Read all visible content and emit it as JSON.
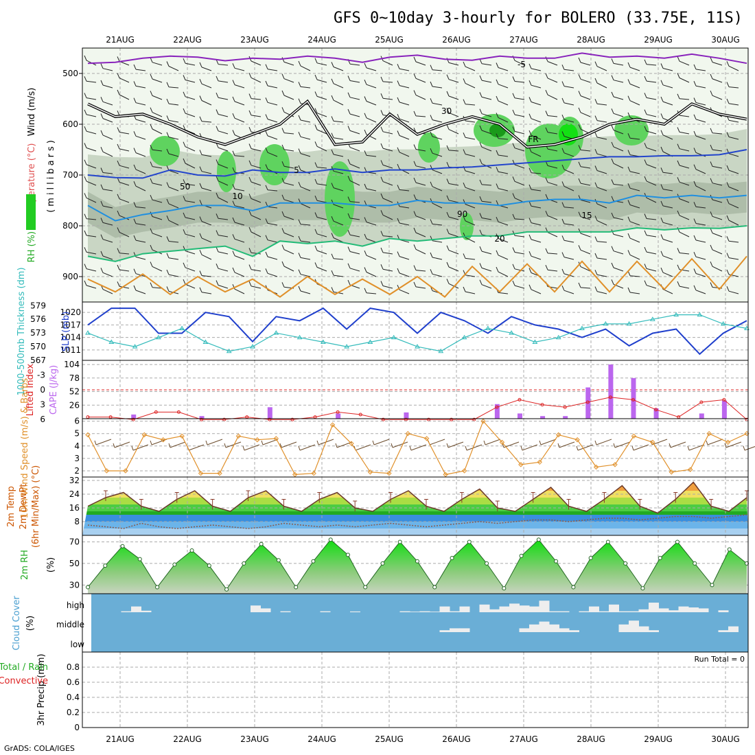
{
  "title": "GFS 0~10day 3-hourly for BOLERO (33.75E, 11S)",
  "credit": "GrADS: COLA/IGES",
  "colors": {
    "wind_label": "#000000",
    "temp_label": "#e05050",
    "rh_label": "#22aa22",
    "slp": "#1f3fcc",
    "thickness": "#33bbbb",
    "lifted": "#dd2222",
    "cape": "#bb66ee",
    "wind10": "#e0902a",
    "rh2m": "#22aa22",
    "cloud_label": "#4a9fd0",
    "cloud_bg": "#6aaed6",
    "precip_total": "#22aa22",
    "precip_conv": "#dd2222",
    "grid": "#aaaaaa"
  },
  "chart_data": [
    {
      "id": "cross_section",
      "type": "heatmap",
      "xlabels": [
        "21AUG",
        "22AUG",
        "23AUG",
        "24AUG",
        "25AUG",
        "26AUG",
        "27AUG",
        "28AUG",
        "29AUG",
        "30AUG"
      ],
      "ylabel_parts": [
        "Wind (m/s)",
        "Temperature (°C)",
        "RH (%)"
      ],
      "ylabel_units": "(millibars)",
      "yticks": [
        500,
        600,
        700,
        800,
        900
      ],
      "ylim": [
        950,
        450
      ],
      "isotherm_labels": [
        "-5",
        "5",
        "10",
        "15",
        "20",
        "FR"
      ],
      "rh_labels": [
        "30",
        "50",
        "90"
      ],
      "isotherms": [
        {
          "label": "-5",
          "color": "#8822bb",
          "values": [
            480,
            478,
            470,
            466,
            468,
            475,
            470,
            472,
            466,
            470,
            478,
            468,
            464,
            472,
            474,
            466,
            470,
            470,
            460,
            468,
            466,
            470,
            462,
            470,
            480
          ]
        },
        {
          "label": "5",
          "color": "#2244cc",
          "values": [
            700,
            705,
            706,
            690,
            700,
            702,
            690,
            695,
            695,
            688,
            695,
            690,
            690,
            686,
            684,
            680,
            676,
            672,
            668,
            664,
            664,
            662,
            662,
            660,
            650
          ]
        },
        {
          "label": "10",
          "color": "#1f8fe0",
          "values": [
            760,
            790,
            778,
            770,
            760,
            760,
            770,
            755,
            755,
            755,
            760,
            760,
            750,
            755,
            755,
            760,
            752,
            748,
            748,
            755,
            740,
            745,
            740,
            745,
            740
          ]
        },
        {
          "label": "15",
          "color": "#22bb77",
          "values": [
            860,
            870,
            855,
            850,
            845,
            840,
            860,
            830,
            835,
            830,
            840,
            825,
            830,
            825,
            820,
            820,
            812,
            812,
            812,
            812,
            804,
            808,
            804,
            805,
            800
          ]
        },
        {
          "label": "20",
          "color": "#e0902a",
          "values": [
            905,
            930,
            895,
            935,
            900,
            930,
            905,
            940,
            900,
            935,
            905,
            935,
            900,
            940,
            880,
            930,
            875,
            930,
            870,
            930,
            870,
            925,
            865,
            925,
            860
          ]
        }
      ],
      "freezing_level": [
        560,
        585,
        580,
        600,
        625,
        640,
        620,
        600,
        555,
        640,
        635,
        580,
        620,
        600,
        585,
        600,
        645,
        640,
        625,
        600,
        590,
        600,
        560,
        580,
        590
      ]
    },
    {
      "id": "slp_thickness",
      "type": "line",
      "ylabel": "SLP (mb)",
      "ylabel2": "1000-500mb Thickness (dm)",
      "slp_ticks": [
        1011,
        1014,
        1017,
        1020
      ],
      "thick_ticks": [
        567,
        570,
        573,
        576,
        579
      ],
      "series": [
        {
          "name": "SLP (mb)",
          "values": [
            1017,
            1021,
            1021,
            1015,
            1015,
            1020,
            1019,
            1013,
            1019,
            1018,
            1021,
            1016,
            1021,
            1020,
            1015,
            1020,
            1018,
            1015,
            1019,
            1017,
            1016,
            1014,
            1016,
            1012,
            1015,
            1016,
            1010,
            1015,
            1018
          ]
        },
        {
          "name": "Thickness (dm)",
          "values": [
            573,
            571,
            570,
            572,
            574,
            571,
            569,
            570,
            573,
            572,
            571,
            570,
            571,
            572,
            570,
            569,
            572,
            574,
            573,
            571,
            572,
            574,
            575,
            575,
            576,
            577,
            577,
            575,
            574
          ]
        }
      ]
    },
    {
      "id": "cape_li",
      "type": "bar",
      "ylabel": "CAPE (J/kg)",
      "ylabel2": "Lifted Index",
      "cape_ticks": [
        26,
        52,
        78,
        104
      ],
      "li_ticks": [
        "-3",
        "0",
        "3",
        "6"
      ],
      "cape": [
        0,
        0,
        8,
        0,
        0,
        5,
        0,
        0,
        22,
        0,
        0,
        10,
        0,
        0,
        12,
        0,
        0,
        0,
        28,
        10,
        5,
        5,
        60,
        104,
        78,
        20,
        0,
        10,
        35,
        0
      ],
      "lifted_index": [
        5.5,
        5.5,
        6,
        4.5,
        4.5,
        6,
        6,
        5.5,
        6,
        6,
        5.5,
        4.5,
        5,
        6,
        6,
        6,
        6,
        6,
        3.5,
        2,
        3,
        3.5,
        2.5,
        1.5,
        2,
        4,
        5.5,
        2.5,
        2,
        6
      ]
    },
    {
      "id": "wind10m",
      "type": "line",
      "ylabel": "10m Wind Speed (m/s) & Barbs",
      "yticks": [
        2,
        3,
        4,
        5,
        6
      ],
      "ylim": [
        1.5,
        6.2
      ],
      "values": [
        4.9,
        2,
        2,
        4.9,
        4.5,
        4.8,
        1.8,
        1.8,
        4.8,
        4.5,
        4.6,
        1.7,
        1.8,
        5.7,
        4.2,
        1.9,
        1.8,
        5.0,
        4.6,
        1.7,
        2.0,
        6.0,
        4.3,
        2.5,
        2.7,
        4.9,
        4.5,
        2.3,
        2.5,
        4.8,
        4.3,
        1.9,
        2.1,
        5.0,
        4.3,
        5.0
      ]
    },
    {
      "id": "temp2m",
      "type": "area",
      "ylabel": "2m Temp",
      "ylabel2": "2m DewPt",
      "ylabel3": "(6hr Min/Max) (°C)",
      "yticks": [
        8,
        16,
        24,
        32
      ],
      "ylim": [
        0,
        34
      ],
      "temperature": [
        17,
        22,
        25,
        17,
        14,
        21,
        26,
        17,
        14,
        22,
        26,
        17,
        14,
        21,
        25,
        16,
        14,
        21,
        26,
        17,
        14,
        21,
        27,
        16,
        14,
        21,
        28,
        17,
        14,
        21,
        29,
        17,
        13,
        21,
        31,
        17,
        14,
        22
      ],
      "dewpoint": [
        6,
        5,
        4,
        7,
        5,
        4,
        5,
        6,
        5,
        4,
        5,
        7,
        6,
        5,
        6,
        5,
        6,
        7,
        6,
        5,
        6,
        7,
        8,
        7,
        8,
        9,
        9,
        8,
        9,
        10,
        10,
        9,
        10,
        11,
        11,
        10,
        11,
        12
      ]
    },
    {
      "id": "rh2m",
      "type": "area",
      "ylabel": "2m RH",
      "ylabel2": "(%)",
      "yticks": [
        30,
        50,
        70
      ],
      "ylim": [
        22,
        76
      ],
      "values": [
        28,
        48,
        66,
        54,
        28,
        49,
        62,
        48,
        26,
        50,
        68,
        53,
        28,
        52,
        72,
        58,
        28,
        50,
        70,
        52,
        28,
        55,
        70,
        50,
        27,
        57,
        72,
        52,
        28,
        55,
        70,
        50,
        27,
        55,
        70,
        50,
        30,
        63,
        50
      ]
    },
    {
      "id": "cloud",
      "type": "bar",
      "ylabel": "Cloud Cover",
      "ylabel2": "(%)",
      "levels": [
        "high",
        "middle",
        "low"
      ],
      "high": [
        0,
        0,
        0,
        5,
        30,
        8,
        0,
        0,
        0,
        0,
        0,
        0,
        0,
        0,
        0,
        0,
        35,
        20,
        0,
        5,
        0,
        0,
        0,
        5,
        0,
        0,
        4,
        0,
        0,
        0,
        0,
        5,
        3,
        5,
        3,
        30,
        5,
        30,
        0,
        40,
        15,
        30,
        45,
        35,
        30,
        60,
        5,
        5,
        0,
        5,
        30,
        5,
        40,
        5,
        5,
        15,
        50,
        20,
        10,
        30,
        25,
        20,
        0,
        10,
        0,
        0
      ],
      "middle": [
        0,
        0,
        0,
        0,
        0,
        0,
        0,
        0,
        0,
        0,
        0,
        0,
        0,
        0,
        0,
        0,
        0,
        0,
        0,
        0,
        0,
        0,
        0,
        0,
        0,
        0,
        0,
        0,
        0,
        0,
        0,
        0,
        0,
        0,
        0,
        10,
        20,
        20,
        0,
        0,
        0,
        0,
        0,
        20,
        40,
        55,
        40,
        20,
        10,
        0,
        0,
        0,
        0,
        40,
        60,
        30,
        10,
        0,
        0,
        0,
        0,
        0,
        0,
        10,
        30,
        0
      ],
      "low": [
        0,
        0,
        0,
        0,
        0,
        0,
        0,
        0,
        0,
        0,
        0,
        0,
        0,
        0,
        0,
        0,
        0,
        0,
        0,
        0,
        0,
        0,
        0,
        0,
        0,
        0,
        0,
        0,
        0,
        0,
        0,
        0,
        0,
        0,
        0,
        0,
        0,
        0,
        0,
        0,
        0,
        0,
        0,
        0,
        0,
        0,
        0,
        0,
        0,
        0,
        0,
        0,
        0,
        0,
        0,
        0,
        0,
        0,
        0,
        0,
        0,
        0,
        0,
        0,
        0,
        0
      ]
    },
    {
      "id": "precip",
      "type": "bar",
      "ylabel": "3hr Precip (mm)",
      "ylabel2": "Total / Rain",
      "ylabel3": "Convective",
      "yticks": [
        "0",
        "0.2",
        "0.4",
        "0.6",
        "0.8"
      ],
      "ylim": [
        0,
        1
      ],
      "run_total": "Run Total = 0",
      "values": []
    }
  ]
}
